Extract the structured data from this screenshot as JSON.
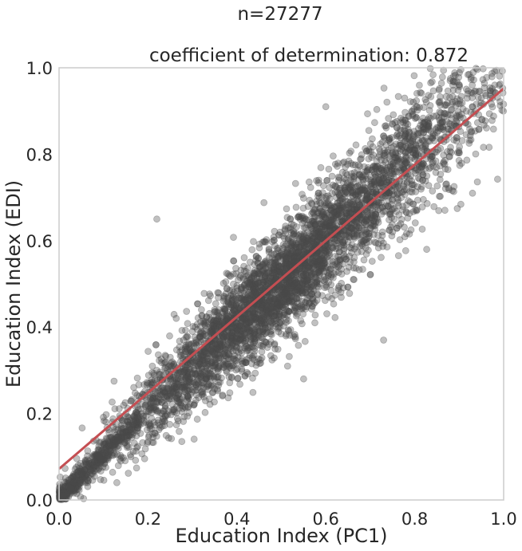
{
  "chart_data": {
    "type": "scatter",
    "title_lines": [
      "n=27277",
      "coefficient of determination: 0.872"
    ],
    "xlabel": "Education Index (PC1)",
    "ylabel": "Education Index (EDI)",
    "xlim": [
      0.0,
      1.0
    ],
    "ylim": [
      0.0,
      1.0
    ],
    "xticks": [
      0.0,
      0.2,
      0.4,
      0.6,
      0.8,
      1.0
    ],
    "xtick_labels": [
      "0.0",
      "0.2",
      "0.4",
      "0.6",
      "0.8",
      "1.0"
    ],
    "yticks": [
      0.0,
      0.2,
      0.4,
      0.6,
      0.8,
      1.0
    ],
    "ytick_labels": [
      "0.0",
      "0.2",
      "0.4",
      "0.6",
      "0.8",
      "1.0"
    ],
    "grid": false,
    "n_points": 27277,
    "r_squared": 0.872,
    "regression_line": {
      "intercept": 0.072,
      "slope": 0.88,
      "color": "#c44e52"
    },
    "point_color": "#4a4a4a",
    "point_alpha": 0.35,
    "representative_points": [
      [
        0.01,
        0.01
      ],
      [
        0.03,
        0.02
      ],
      [
        0.05,
        0.06
      ],
      [
        0.08,
        0.09
      ],
      [
        0.1,
        0.12
      ],
      [
        0.12,
        0.18
      ],
      [
        0.15,
        0.2
      ],
      [
        0.18,
        0.24
      ],
      [
        0.2,
        0.27
      ],
      [
        0.22,
        0.3
      ],
      [
        0.25,
        0.33
      ],
      [
        0.28,
        0.37
      ],
      [
        0.3,
        0.39
      ],
      [
        0.33,
        0.41
      ],
      [
        0.35,
        0.44
      ],
      [
        0.38,
        0.46
      ],
      [
        0.4,
        0.49
      ],
      [
        0.43,
        0.51
      ],
      [
        0.45,
        0.53
      ],
      [
        0.48,
        0.55
      ],
      [
        0.5,
        0.57
      ],
      [
        0.53,
        0.59
      ],
      [
        0.55,
        0.61
      ],
      [
        0.58,
        0.63
      ],
      [
        0.6,
        0.65
      ],
      [
        0.63,
        0.67
      ],
      [
        0.65,
        0.69
      ],
      [
        0.68,
        0.71
      ],
      [
        0.7,
        0.73
      ],
      [
        0.73,
        0.75
      ],
      [
        0.75,
        0.77
      ],
      [
        0.78,
        0.79
      ],
      [
        0.8,
        0.81
      ],
      [
        0.83,
        0.83
      ],
      [
        0.85,
        0.85
      ],
      [
        0.88,
        0.87
      ],
      [
        0.9,
        0.89
      ],
      [
        0.93,
        0.91
      ],
      [
        0.95,
        0.93
      ],
      [
        0.98,
        0.96
      ],
      [
        0.22,
        0.65
      ],
      [
        0.6,
        0.91
      ],
      [
        0.73,
        0.37
      ],
      [
        0.55,
        0.28
      ],
      [
        0.13,
        0.04
      ]
    ]
  }
}
